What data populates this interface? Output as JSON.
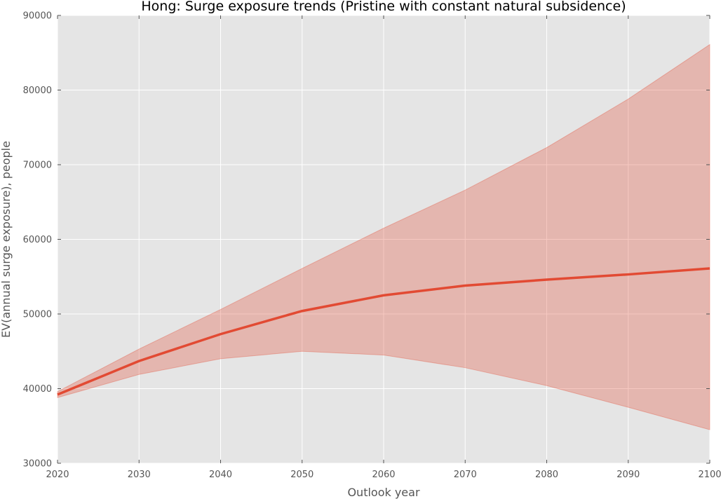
{
  "chart_data": {
    "type": "line",
    "title": "Hong: Surge exposure trends (Pristine with constant natural subsidence)",
    "xlabel": "Outlook year",
    "ylabel": "EV(annual surge exposure), people",
    "xlim": [
      2020,
      2100
    ],
    "ylim": [
      30000,
      90000
    ],
    "x_ticks": [
      2020,
      2030,
      2040,
      2050,
      2060,
      2070,
      2080,
      2090,
      2100
    ],
    "y_ticks": [
      30000,
      40000,
      50000,
      60000,
      70000,
      80000,
      90000
    ],
    "x_tick_labels": [
      "2020",
      "2030",
      "2040",
      "2050",
      "2060",
      "2070",
      "2080",
      "2090",
      "2100"
    ],
    "y_tick_labels": [
      "30000",
      "40000",
      "50000",
      "60000",
      "70000",
      "80000",
      "90000"
    ],
    "grid": true,
    "x": [
      2020,
      2030,
      2040,
      2050,
      2060,
      2070,
      2080,
      2090,
      2100
    ],
    "series": [
      {
        "values": [
          39200,
          43700,
          47300,
          50400,
          52500,
          53800,
          54600,
          55300,
          56100
        ],
        "lower": [
          38800,
          41900,
          44000,
          45000,
          44500,
          42800,
          40400,
          37500,
          34500
        ],
        "upper": [
          39600,
          45300,
          50600,
          56100,
          61500,
          66600,
          72300,
          78800,
          86100
        ],
        "color": "#E24A33",
        "band_color": "#E24A33"
      }
    ],
    "background_color": "#E5E5E5",
    "grid_color": "#FFFFFF"
  }
}
